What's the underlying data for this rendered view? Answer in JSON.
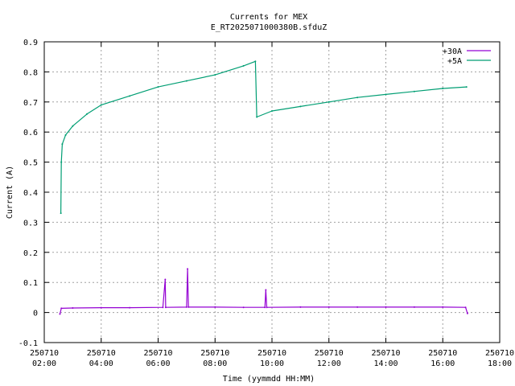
{
  "chart_data": {
    "type": "line",
    "title": "Currents for MEX",
    "subtitle": "E_RT2025071000380B.sfduZ",
    "xlabel": "Time (yymmdd HH:MM)",
    "ylabel": "Current (A)",
    "xlim": [
      "2025-07-10 02:00",
      "2025-07-10 18:00"
    ],
    "ylim": [
      -0.1,
      0.9
    ],
    "grid": true,
    "legend_position": "top-right",
    "x_ticks": [
      {
        "date": "250710",
        "time": "02:00"
      },
      {
        "date": "250710",
        "time": "04:00"
      },
      {
        "date": "250710",
        "time": "06:00"
      },
      {
        "date": "250710",
        "time": "08:00"
      },
      {
        "date": "250710",
        "time": "10:00"
      },
      {
        "date": "250710",
        "time": "12:00"
      },
      {
        "date": "250710",
        "time": "14:00"
      },
      {
        "date": "250710",
        "time": "16:00"
      },
      {
        "date": "250710",
        "time": "18:00"
      }
    ],
    "y_ticks": [
      "-0.1",
      "0",
      "0.1",
      "0.2",
      "0.3",
      "0.4",
      "0.5",
      "0.6",
      "0.7",
      "0.8",
      "0.9"
    ],
    "series": [
      {
        "name": "+30A",
        "color": "#9400d3",
        "points": [
          [
            "02:33",
            -0.005
          ],
          [
            "02:36",
            0.014
          ],
          [
            "03:00",
            0.015
          ],
          [
            "04:00",
            0.016
          ],
          [
            "05:00",
            0.016
          ],
          [
            "06:10",
            0.017
          ],
          [
            "06:15",
            0.11
          ],
          [
            "06:16",
            0.017
          ],
          [
            "07:00",
            0.018
          ],
          [
            "07:02",
            0.145
          ],
          [
            "07:04",
            0.018
          ],
          [
            "08:00",
            0.018
          ],
          [
            "09:00",
            0.017
          ],
          [
            "09:45",
            0.017
          ],
          [
            "09:47",
            0.075
          ],
          [
            "09:49",
            0.017
          ],
          [
            "11:00",
            0.018
          ],
          [
            "12:00",
            0.018
          ],
          [
            "13:00",
            0.018
          ],
          [
            "14:00",
            0.018
          ],
          [
            "15:00",
            0.018
          ],
          [
            "16:00",
            0.018
          ],
          [
            "16:48",
            0.017
          ],
          [
            "16:52",
            -0.003
          ]
        ]
      },
      {
        "name": "+5A",
        "color": "#009e73",
        "points": [
          [
            "02:35",
            0.33
          ],
          [
            "02:36",
            0.5
          ],
          [
            "02:38",
            0.56
          ],
          [
            "02:45",
            0.59
          ],
          [
            "03:00",
            0.62
          ],
          [
            "03:30",
            0.66
          ],
          [
            "04:00",
            0.69
          ],
          [
            "05:00",
            0.72
          ],
          [
            "06:00",
            0.75
          ],
          [
            "07:00",
            0.77
          ],
          [
            "08:00",
            0.79
          ],
          [
            "09:00",
            0.82
          ],
          [
            "09:25",
            0.835
          ],
          [
            "09:28",
            0.65
          ],
          [
            "10:00",
            0.67
          ],
          [
            "11:00",
            0.685
          ],
          [
            "12:00",
            0.7
          ],
          [
            "13:00",
            0.715
          ],
          [
            "14:00",
            0.725
          ],
          [
            "15:00",
            0.735
          ],
          [
            "16:00",
            0.745
          ],
          [
            "16:50",
            0.75
          ]
        ]
      }
    ]
  }
}
